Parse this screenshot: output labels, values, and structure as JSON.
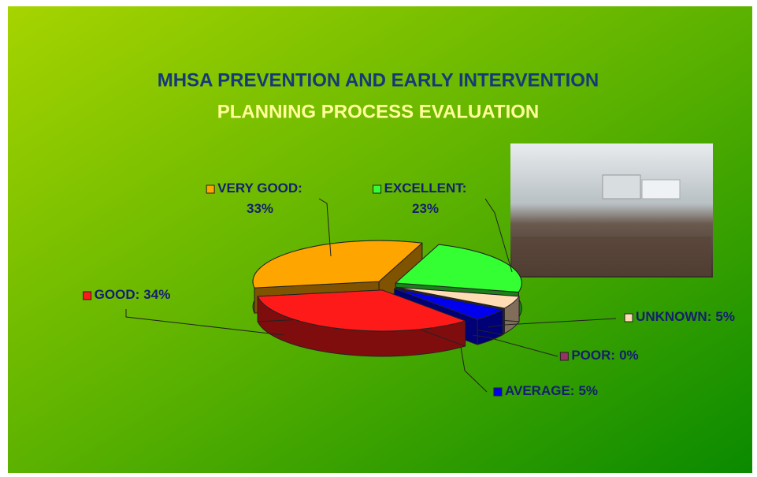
{
  "chart_data": {
    "type": "pie",
    "title": "MHSA PREVENTION AND EARLY INTERVENTION",
    "subtitle": "PLANNING PROCESS EVALUATION",
    "categories": [
      "EXCELLENT:",
      "UNKNOWN:",
      "POOR:",
      "AVERAGE:",
      "GOOD:",
      "VERY GOOD:"
    ],
    "values": [
      23,
      5,
      0,
      5,
      34,
      33
    ],
    "value_labels": [
      "23%",
      "5%",
      "0%",
      "5%",
      "34%",
      "33%"
    ],
    "colors": [
      "#33ff33",
      "#ffdcb4",
      "#993366",
      "#0000ee",
      "#ff1a1a",
      "#ffa500"
    ]
  }
}
